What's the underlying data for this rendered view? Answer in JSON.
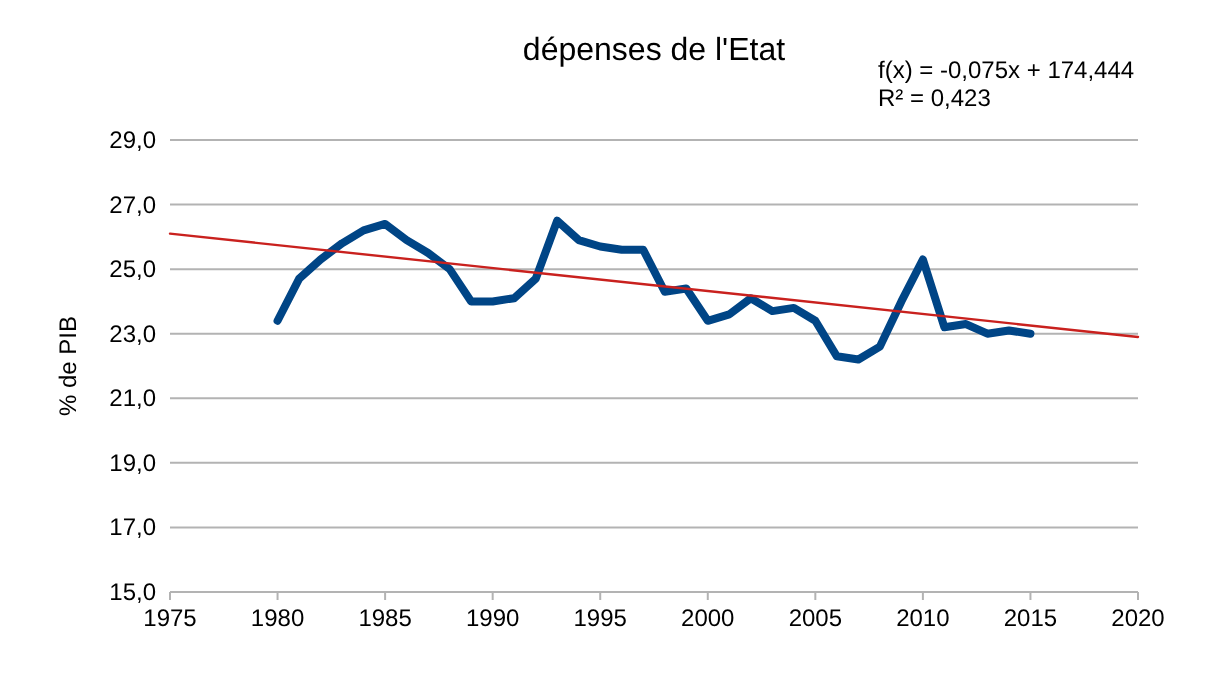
{
  "chart_data": {
    "type": "line",
    "title": "dépenses de l'Etat",
    "ylabel": "% de PIB",
    "annotations": [
      "f(x) = -0,075x + 174,444",
      "R² = 0,423"
    ],
    "series": [
      {
        "color": "#004586",
        "x": [
          1980,
          1981,
          1982,
          1983,
          1984,
          1985,
          1986,
          1987,
          1988,
          1989,
          1990,
          1991,
          1992,
          1993,
          1994,
          1995,
          1996,
          1997,
          1998,
          1999,
          2000,
          2001,
          2002,
          2003,
          2004,
          2005,
          2006,
          2007,
          2008,
          2009,
          2010,
          2011,
          2012,
          2013,
          2014,
          2015
        ],
        "values": [
          23.4,
          24.7,
          25.3,
          25.8,
          26.2,
          26.4,
          25.9,
          25.5,
          25.0,
          24.0,
          24.0,
          24.1,
          24.7,
          26.5,
          25.9,
          25.7,
          25.6,
          25.6,
          24.3,
          24.4,
          23.4,
          23.6,
          24.1,
          23.7,
          23.8,
          23.4,
          22.3,
          22.2,
          22.6,
          24.0,
          25.3,
          23.2,
          23.3,
          23.0,
          23.1,
          23.0
        ]
      },
      {
        "type": "line",
        "color": "#c9211e",
        "x": [
          1975,
          2020
        ],
        "values": [
          26.1,
          22.9
        ]
      }
    ],
    "xlim": [
      1975,
      2020
    ],
    "xticks": [
      1975,
      1980,
      1985,
      1990,
      1995,
      2000,
      2005,
      2010,
      2015,
      2020
    ],
    "ylim": [
      15,
      29
    ],
    "yticks": [
      {
        "value": 15,
        "label": "15,0"
      },
      {
        "value": 17,
        "label": "17,0"
      },
      {
        "value": 19,
        "label": "19,0"
      },
      {
        "value": 21,
        "label": "21,0"
      },
      {
        "value": 23,
        "label": "23,0"
      },
      {
        "value": 25,
        "label": "25,0"
      },
      {
        "value": 27,
        "label": "27,0"
      },
      {
        "value": 29,
        "label": "29,0"
      }
    ],
    "grid": "y"
  }
}
